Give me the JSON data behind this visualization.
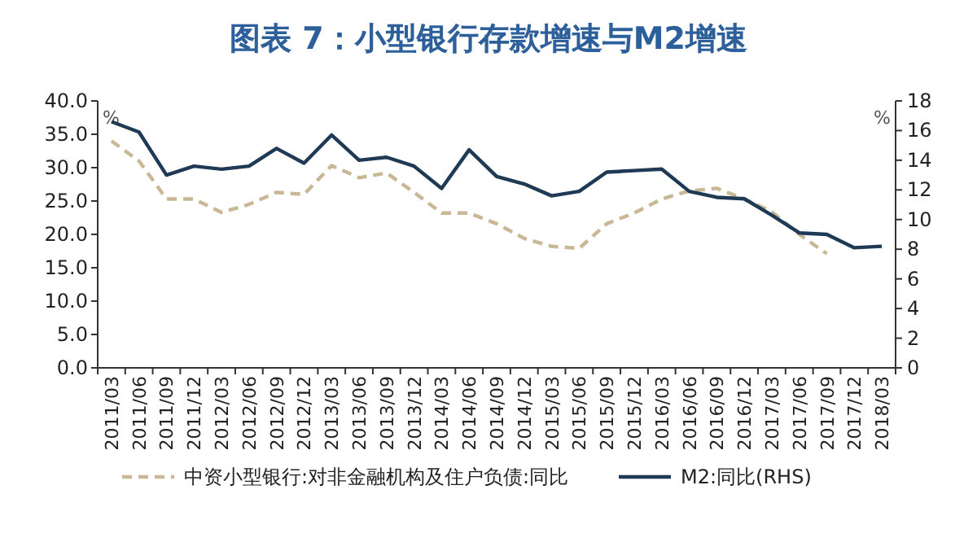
{
  "chart_data": {
    "type": "line",
    "title": "图表 7：小型银行存款增速与M2增速",
    "ylabel": "%",
    "y2label": "%",
    "categories": [
      "2011/03",
      "2011/06",
      "2011/09",
      "2011/12",
      "2012/03",
      "2012/06",
      "2012/09",
      "2012/12",
      "2013/03",
      "2013/06",
      "2013/09",
      "2013/12",
      "2014/03",
      "2014/06",
      "2014/09",
      "2014/12",
      "2015/03",
      "2015/06",
      "2015/09",
      "2015/12",
      "2016/03",
      "2016/06",
      "2016/09",
      "2016/12",
      "2017/03",
      "2017/06",
      "2017/09",
      "2017/12",
      "2018/03"
    ],
    "series": [
      {
        "name": "中资小型银行:对非金融机构及住户负债:同比",
        "color": "#c9b896",
        "line_style": "dashed",
        "values": [
          34,
          31,
          25.3,
          25.3,
          23.3,
          24.5,
          26.3,
          26,
          30.3,
          28.5,
          29.2,
          26.3,
          23.2,
          23.2,
          21.6,
          19.4,
          18.2,
          17.9,
          21.6,
          23.2,
          25.3,
          26.5,
          26.9,
          25.3,
          23.4,
          20,
          17.1,
          null,
          null
        ]
      },
      {
        "name": "M2:同比(RHS)",
        "color": "#1f3a55",
        "line_style": "solid",
        "axis": "y2",
        "values": [
          16.6,
          15.9,
          13,
          13.6,
          13.4,
          13.6,
          14.8,
          13.8,
          15.7,
          14,
          14.2,
          13.6,
          12.1,
          14.7,
          12.9,
          12.4,
          11.6,
          11.9,
          13.2,
          13.3,
          13.4,
          11.9,
          11.5,
          11.4,
          10.3,
          9.1,
          9,
          8.1,
          8.2
        ]
      }
    ],
    "ylim": [
      0,
      40
    ],
    "yticks": [
      {
        "value": 0,
        "label": "0.0"
      },
      {
        "value": 5,
        "label": "5.0"
      },
      {
        "value": 10,
        "label": "10.0"
      },
      {
        "value": 15,
        "label": "15.0"
      },
      {
        "value": 20,
        "label": "20.0"
      },
      {
        "value": 25,
        "label": "25.0"
      },
      {
        "value": 30,
        "label": "30.0"
      },
      {
        "value": 35,
        "label": "35.0"
      },
      {
        "value": 40,
        "label": "40.0"
      }
    ],
    "y2lim": [
      0,
      18
    ],
    "y2ticks": [
      0,
      2,
      4,
      6,
      8,
      10,
      12,
      14,
      16,
      18
    ],
    "legend": "bottom",
    "marker": "none",
    "grid": false
  }
}
